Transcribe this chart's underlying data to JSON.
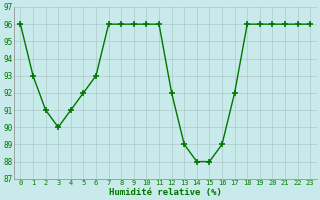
{
  "x": [
    0,
    1,
    2,
    3,
    4,
    5,
    6,
    7,
    8,
    9,
    10,
    11,
    12,
    13,
    14,
    15,
    16,
    17,
    18,
    19,
    20,
    21,
    22,
    23
  ],
  "y": [
    96,
    93,
    91,
    90,
    91,
    92,
    93,
    96,
    96,
    96,
    96,
    96,
    92,
    89,
    88,
    88,
    89,
    92,
    96,
    96,
    96,
    96,
    96,
    96
  ],
  "line_color": "#007700",
  "marker_color": "#007700",
  "bg_color": "#c8eaea",
  "grid_color": "#b0c8c8",
  "xlabel": "Humidité relative (%)",
  "xlabel_color": "#007700",
  "ylim": [
    87,
    97
  ],
  "xlim": [
    -0.5,
    23.5
  ],
  "yticks": [
    87,
    88,
    89,
    90,
    91,
    92,
    93,
    94,
    95,
    96,
    97
  ],
  "xticks": [
    0,
    1,
    2,
    3,
    4,
    5,
    6,
    7,
    8,
    9,
    10,
    11,
    12,
    13,
    14,
    15,
    16,
    17,
    18,
    19,
    20,
    21,
    22,
    23
  ],
  "xtick_labels": [
    "0",
    "1",
    "2",
    "3",
    "4",
    "5",
    "6",
    "7",
    "8",
    "9",
    "10",
    "11",
    "12",
    "13",
    "14",
    "15",
    "16",
    "17",
    "18",
    "19",
    "20",
    "21",
    "22",
    "23"
  ],
  "line_width": 1.0,
  "marker_size": 4
}
